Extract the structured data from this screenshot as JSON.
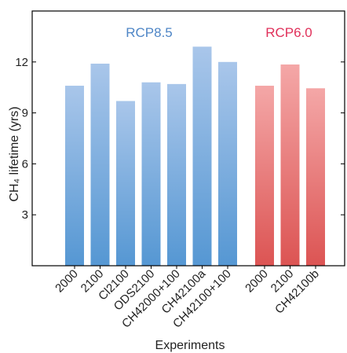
{
  "chart_data": {
    "type": "bar",
    "xlabel": "Experiments",
    "ylabel": "CH₄ lifetime (yrs)",
    "ylim": [
      0,
      14.6
    ],
    "yticks": [
      3,
      6,
      9,
      12
    ],
    "grid": false,
    "groups": [
      {
        "name": "RCP8.5",
        "color_top": "#a9c6ea",
        "color_bottom": "#5597d3",
        "label_color": "#4f86c6",
        "categories": [
          "2000",
          "2100",
          "Cl2100",
          "ODS2100",
          "CH42000+100",
          "CH42100a",
          "CH42100+100"
        ],
        "values": [
          10.6,
          11.9,
          9.7,
          10.8,
          10.7,
          12.9,
          12.0
        ]
      },
      {
        "name": "RCP6.0",
        "color_top": "#f4a7a7",
        "color_bottom": "#dc5453",
        "label_color": "#e0305a",
        "categories": [
          "2000",
          "2100",
          "CH42100b"
        ],
        "values": [
          10.6,
          11.85,
          10.45
        ]
      }
    ]
  }
}
